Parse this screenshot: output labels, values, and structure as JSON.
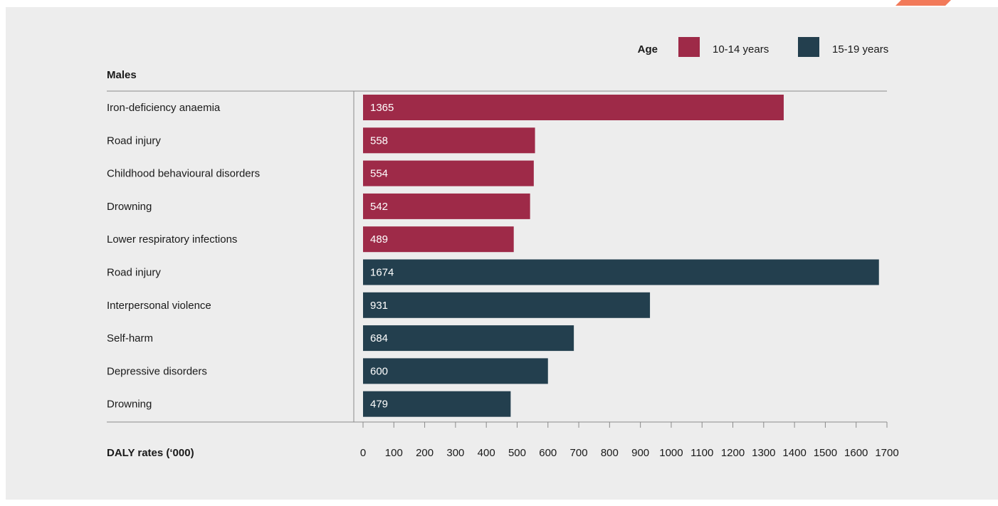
{
  "chart_data": {
    "type": "bar",
    "orientation": "horizontal",
    "subtitle": "Males",
    "xlabel": "DALY rates (‘000)",
    "xlim": [
      0,
      1700
    ],
    "xticks": [
      0,
      100,
      200,
      300,
      400,
      500,
      600,
      700,
      800,
      900,
      1000,
      1100,
      1200,
      1300,
      1400,
      1500,
      1600,
      1700
    ],
    "legend": {
      "title": "Age",
      "placement": "top-right",
      "entries": [
        {
          "name": "10-14 years",
          "color": "#9e2a48"
        },
        {
          "name": "15-19 years",
          "color": "#233f4e"
        }
      ]
    },
    "categories": [
      "Iron-deficiency anaemia",
      "Road injury",
      "Childhood behavioural disorders",
      "Drowning",
      "Lower respiratory infections",
      "Road injury",
      "Interpersonal violence",
      "Self-harm",
      "Depressive disorders",
      "Drowning"
    ],
    "values": [
      1365,
      558,
      554,
      542,
      489,
      1674,
      931,
      684,
      600,
      479
    ],
    "groups": [
      "10-14 years",
      "10-14 years",
      "10-14 years",
      "10-14 years",
      "10-14 years",
      "15-19 years",
      "15-19 years",
      "15-19 years",
      "15-19 years",
      "15-19 years"
    ],
    "data_labels": [
      "1365",
      "558",
      "554",
      "542",
      "489",
      "1674",
      "931",
      "684",
      "600",
      "479"
    ]
  }
}
